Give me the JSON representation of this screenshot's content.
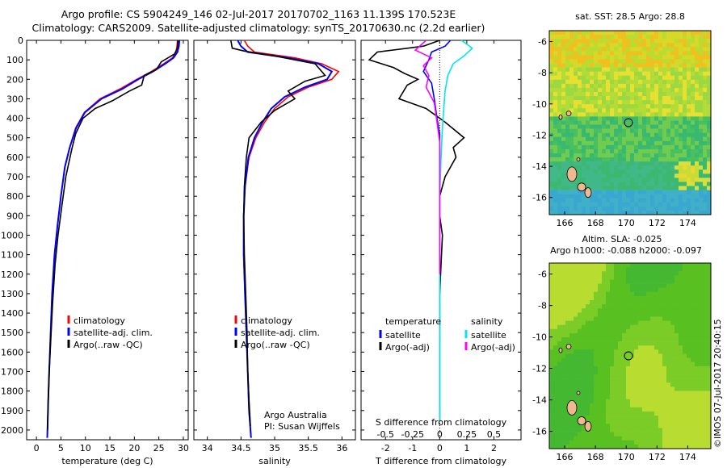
{
  "header": {
    "line1": "Argo profile: CS 5904249_146 02-Jul-2017 20170702_1163 11.139S 170.523E",
    "line2": "Climatology: CARS2009. Satellite-adjusted climatology: synTS_20170630.nc (2.2d earlier)"
  },
  "colors": {
    "climatology": "#ff0000",
    "satellite": "#0000ff",
    "argo": "#000000",
    "s_satellite": "#00e5ee",
    "s_argo": "#ff00ff"
  },
  "depth_ticks": [
    "0",
    "100",
    "200",
    "300",
    "400",
    "500",
    "600",
    "700",
    "800",
    "900",
    "1000",
    "1100",
    "1200",
    "1300",
    "1400",
    "1500",
    "1600",
    "1700",
    "1800",
    "1900",
    "2000"
  ],
  "chart_data": [
    {
      "type": "line",
      "xlabel": "temperature (deg C)",
      "xticks": [
        "0",
        "5",
        "10",
        "15",
        "20",
        "25",
        "30"
      ],
      "xlim": [
        -2,
        31
      ],
      "ylim": [
        2050,
        0
      ],
      "legend": [
        "climatology",
        "satellite-adj. clim.",
        "Argo(..raw -QC)"
      ],
      "series": [
        {
          "name": "climatology",
          "x": [
            28.8,
            28.7,
            28.5,
            27.8,
            26,
            23.5,
            20.5,
            17,
            13,
            9.8,
            8,
            6.8,
            5.8,
            5,
            4.3,
            3.7,
            3.2,
            2.9,
            2.6,
            2.4,
            2.3,
            2.2
          ],
          "y": [
            0,
            30,
            60,
            90,
            120,
            160,
            200,
            250,
            300,
            370,
            450,
            550,
            650,
            800,
            950,
            1100,
            1300,
            1500,
            1700,
            1850,
            1950,
            2040
          ]
        },
        {
          "name": "satellite-adj. clim.",
          "x": [
            29.2,
            29.1,
            28.8,
            28,
            26.3,
            23.8,
            20.8,
            17.5,
            13.3,
            9.9,
            8.1,
            6.8,
            5.8,
            5,
            4.3,
            3.7,
            3.2,
            2.9,
            2.6,
            2.4,
            2.3,
            2.2
          ],
          "y": [
            0,
            30,
            60,
            90,
            120,
            160,
            200,
            250,
            300,
            370,
            450,
            550,
            650,
            800,
            950,
            1100,
            1300,
            1500,
            1700,
            1850,
            1950,
            2040
          ]
        },
        {
          "name": "Argo(..raw -QC)",
          "x": [
            28.9,
            28.8,
            28.2,
            25.5,
            24.5,
            22,
            21.5,
            19,
            15.5,
            12,
            9.5,
            8,
            7.2,
            6,
            5.2,
            4.4,
            3.8,
            3.3,
            2.9,
            2.6,
            2.4,
            2.3,
            2.25
          ],
          "y": [
            0,
            40,
            70,
            110,
            150,
            180,
            230,
            260,
            310,
            350,
            400,
            480,
            560,
            700,
            850,
            1000,
            1150,
            1350,
            1550,
            1700,
            1850,
            1950,
            2000
          ]
        }
      ]
    },
    {
      "type": "line",
      "xlabel": "salinity",
      "xticks": [
        "34",
        "34.5",
        "35",
        "35.5",
        "36"
      ],
      "xlim": [
        33.8,
        36.2
      ],
      "ylim": [
        2050,
        0
      ],
      "legend": [
        "climatology",
        "satellite-adj. clim.",
        "Argo(..raw -QC)"
      ],
      "annotations": [
        "Argo Australia",
        "PI: Susan Wijffels"
      ],
      "series": [
        {
          "name": "climatology",
          "x": [
            34.55,
            34.6,
            34.7,
            35.3,
            35.7,
            35.95,
            35.85,
            35.5,
            35.2,
            35,
            34.85,
            34.72,
            34.62,
            34.56,
            34.54,
            34.54,
            34.56,
            34.58,
            34.6,
            34.62,
            34.65
          ],
          "y": [
            0,
            30,
            60,
            90,
            120,
            160,
            200,
            240,
            290,
            350,
            420,
            500,
            600,
            750,
            900,
            1100,
            1300,
            1500,
            1700,
            1900,
            2040
          ]
        },
        {
          "name": "satellite-adj. clim.",
          "x": [
            34.45,
            34.5,
            34.6,
            35.2,
            35.65,
            35.85,
            35.78,
            35.45,
            35.15,
            34.95,
            34.82,
            34.7,
            34.61,
            34.56,
            34.54,
            34.54,
            34.56,
            34.58,
            34.6,
            34.62,
            34.65
          ],
          "y": [
            0,
            30,
            60,
            90,
            120,
            160,
            200,
            240,
            290,
            350,
            420,
            500,
            600,
            750,
            900,
            1100,
            1300,
            1500,
            1700,
            1900,
            2040
          ]
        },
        {
          "name": "Argo(..raw -QC)",
          "x": [
            34.35,
            34.37,
            34.55,
            35.0,
            35.6,
            35.75,
            35.45,
            35.2,
            35.3,
            35.0,
            34.8,
            34.62,
            34.58,
            34.55,
            34.54,
            34.55,
            34.57,
            34.59,
            34.6,
            34.62,
            34.64
          ],
          "y": [
            0,
            40,
            55,
            80,
            120,
            180,
            210,
            260,
            300,
            360,
            420,
            500,
            600,
            750,
            900,
            1100,
            1300,
            1500,
            1700,
            1850,
            1980
          ]
        }
      ]
    },
    {
      "type": "line",
      "xlabel": "T difference from climatology",
      "xlabel_top": "S difference from climatology",
      "xticks": [
        "-2",
        "-1",
        "0",
        "1",
        "2"
      ],
      "sticks": [
        "-0.5",
        "-0.25",
        "0",
        "0.25",
        "0.5"
      ],
      "xlim": [
        -2.9,
        3.0
      ],
      "ylim": [
        2050,
        0
      ],
      "legend_headers": [
        "temperature",
        "salinity"
      ],
      "legend": [
        "satellite",
        "Argo(-adj)",
        "satellite",
        "Argo(-adj)"
      ],
      "series": [
        {
          "name": "satellite",
          "x": [
            0.4,
            0.2,
            -0.3,
            -0.4,
            -0.6,
            -0.3,
            -0.2,
            -0.1,
            0,
            0,
            0,
            0,
            0
          ],
          "y": [
            0,
            30,
            60,
            100,
            160,
            220,
            300,
            400,
            480,
            600,
            900,
            1500,
            1950
          ]
        },
        {
          "name": "Argo(-adj)",
          "x": [
            0,
            -0.6,
            -2.3,
            -2.6,
            -1.7,
            -1.3,
            -0.8,
            -1.2,
            -1.5,
            -0.5,
            0.2,
            0.9,
            0.5,
            0.6,
            0.2,
            0,
            0,
            0.1,
            0,
            0,
            0
          ],
          "y": [
            0,
            30,
            60,
            100,
            140,
            170,
            200,
            230,
            300,
            350,
            420,
            500,
            550,
            600,
            700,
            800,
            900,
            1000,
            1300,
            1600,
            1950
          ]
        },
        {
          "name": "satellite",
          "x": [
            0.8,
            1.2,
            0.9,
            0.5,
            0.3,
            0.2,
            0.15,
            0.1,
            0.05,
            0,
            0,
            0
          ],
          "y": [
            0,
            40,
            80,
            120,
            180,
            260,
            350,
            450,
            600,
            800,
            1200,
            1950
          ]
        },
        {
          "name": "Argo(-adj)",
          "x": [
            -0.5,
            -0.9,
            -0.3,
            -0.6,
            -0.4,
            -0.5,
            -0.2,
            -0.1,
            0,
            0,
            0
          ],
          "y": [
            0,
            50,
            90,
            130,
            180,
            240,
            320,
            420,
            520,
            700,
            1200
          ]
        }
      ]
    }
  ],
  "maps": [
    {
      "title": "sat. SST: 28.5 Argo: 28.8",
      "yticks": [
        "-6",
        "-8",
        "-10",
        "-12",
        "-14",
        "-16"
      ],
      "xticks": [
        "166",
        "168",
        "170",
        "172",
        "174"
      ]
    },
    {
      "title": "Altim. SLA: -0.025",
      "title2": "Argo h1000: -0.088 h2000: -0.097",
      "yticks": [
        "-6",
        "-8",
        "-10",
        "-12",
        "-14",
        "-16"
      ],
      "xticks": [
        "166",
        "168",
        "170",
        "172",
        "174"
      ]
    }
  ],
  "side_label": "©IMOS 07-Jul-2017 20:40:15"
}
